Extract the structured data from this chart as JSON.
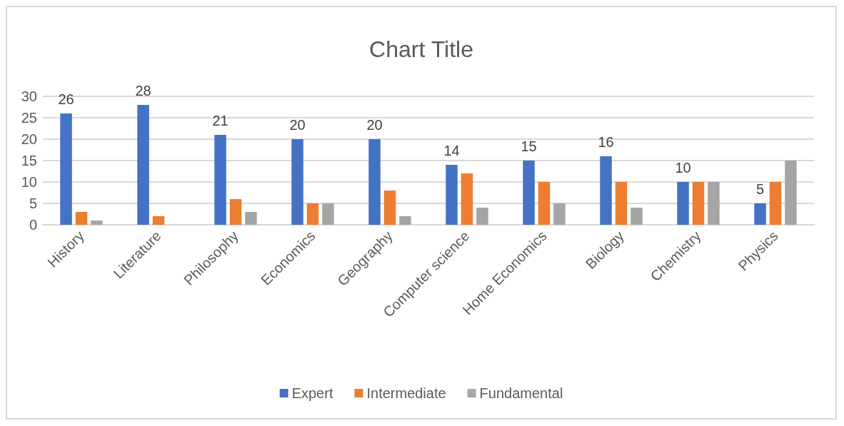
{
  "chart_data": {
    "type": "bar",
    "title": "Chart Title",
    "categories": [
      "History",
      "Literature",
      "Philosophy",
      "Economics",
      "Geography",
      "Computer science",
      "Home Economics",
      "Biology",
      "Chemistry",
      "Physics"
    ],
    "series": [
      {
        "name": "Expert",
        "color": "#4472c4",
        "values": [
          26,
          28,
          21,
          20,
          20,
          14,
          15,
          16,
          10,
          5
        ],
        "value_labels": [
          "26",
          "28",
          "21",
          "20",
          "20",
          "14",
          "15",
          "16",
          "10",
          "5"
        ]
      },
      {
        "name": "Intermediate",
        "color": "#ed7d31",
        "values": [
          3,
          2,
          6,
          5,
          8,
          12,
          10,
          10,
          10,
          10
        ]
      },
      {
        "name": "Fundamental",
        "color": "#a5a5a5",
        "values": [
          1,
          0,
          3,
          5,
          2,
          4,
          5,
          4,
          10,
          15
        ]
      }
    ],
    "ylim": [
      0,
      30
    ],
    "yticks": [
      0,
      5,
      10,
      15,
      20,
      25,
      30
    ],
    "grid": "y",
    "legend": "bottom"
  }
}
